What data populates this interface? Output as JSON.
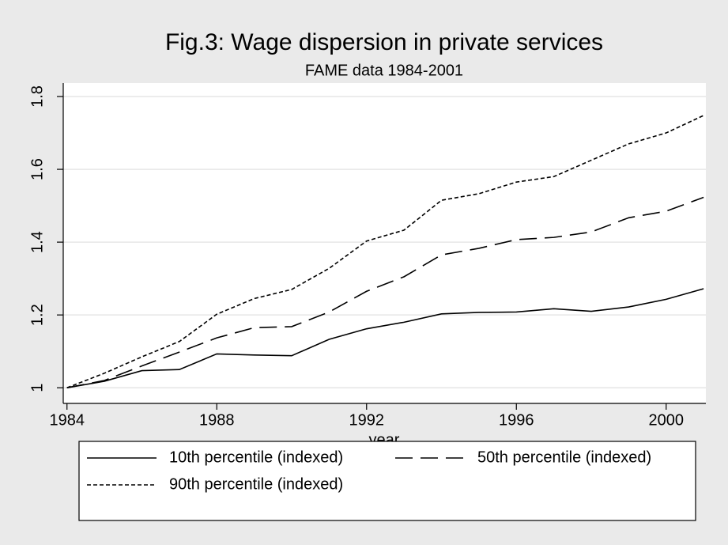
{
  "chart_data": {
    "type": "line",
    "title": "Fig.3: Wage dispersion in private services",
    "subtitle": "FAME data 1984-2001",
    "x_label": "year",
    "x": [
      1984,
      1985,
      1986,
      1987,
      1988,
      1989,
      1990,
      1991,
      1992,
      1993,
      1994,
      1995,
      1996,
      1997,
      1998,
      1999,
      2000,
      2001
    ],
    "series": [
      {
        "name": "10th percentile (indexed)",
        "color": "#000000",
        "dash": "solid",
        "values": [
          1.0,
          1.018,
          1.047,
          1.05,
          1.093,
          1.09,
          1.088,
          1.133,
          1.162,
          1.18,
          1.203,
          1.207,
          1.208,
          1.217,
          1.21,
          1.222,
          1.243,
          1.272
        ]
      },
      {
        "name": "50th percentile (indexed)",
        "color": "#000000",
        "dash": "long",
        "values": [
          1.0,
          1.02,
          1.06,
          1.098,
          1.137,
          1.165,
          1.168,
          1.208,
          1.265,
          1.305,
          1.365,
          1.383,
          1.407,
          1.413,
          1.428,
          1.467,
          1.485,
          1.523
        ]
      },
      {
        "name": "90th percentile (indexed)",
        "color": "#000000",
        "dash": "short",
        "values": [
          1.0,
          1.04,
          1.085,
          1.127,
          1.202,
          1.245,
          1.27,
          1.328,
          1.403,
          1.433,
          1.515,
          1.533,
          1.565,
          1.58,
          1.625,
          1.67,
          1.7,
          1.748
        ]
      }
    ],
    "xlim": [
      1983.9,
      2001.06
    ],
    "xticks": [
      1984,
      1988,
      1992,
      1996,
      2000
    ],
    "ylim": [
      0.957,
      1.837
    ],
    "yticks": [
      1,
      1.2,
      1.4,
      1.6,
      1.8
    ],
    "grid": true
  }
}
